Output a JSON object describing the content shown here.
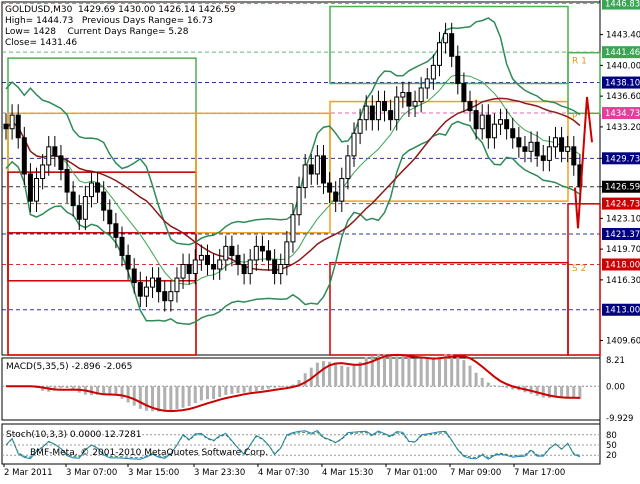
{
  "header": {
    "symbol_line": "GOLDUSD,M30  1429.69 1430.00 1426.14 1426.59",
    "high_line": "High= 1444.73   Previous Days Range= 16.73",
    "low_line": "Low= 1428    Current Days Range= 5.28",
    "close_line": "Close= 1431.46"
  },
  "panes": {
    "macd_label": "MACD(5,35,5) -2.896 -2.065",
    "stoch_label": "Stoch(10,3,3) 0.0000 12.7281"
  },
  "copyright": "BMF-Meta, © 2001-2010 MetaQuotes Software Corp.",
  "colors": {
    "background": "#ffffff",
    "candle": "#000000",
    "bands": "#2e8b57",
    "ma_slow": "#8b1a1a",
    "ma_fast": "#3aa655",
    "range_upper": "#4caf50",
    "range_orange": "#f0a020",
    "range_red": "#cc0000",
    "tag_red": "#cc0000",
    "tag_magenta": "#e0409c",
    "tag_green": "#3aa655",
    "tag_blue": "#000080",
    "tag_black": "#000000"
  },
  "chart_data": {
    "type": "line",
    "title": "GOLDUSD,M30",
    "ylim": [
      1408,
      1447
    ],
    "price_ticks": [
      "1443.40",
      "1440.00",
      "1436.60",
      "1433.20",
      "1429.73",
      "1426.59",
      "1423.10",
      "1419.70",
      "1416.30",
      "1409.60"
    ],
    "price_tags": [
      {
        "label": "1446.83",
        "value": 1446.83,
        "color": "#3aa655"
      },
      {
        "label": "1441.46",
        "value": 1441.46,
        "color": "#3aa655"
      },
      {
        "label": "1438.10",
        "value": 1438.1,
        "color": "#000080"
      },
      {
        "label": "1434.73",
        "value": 1434.73,
        "color": "#e0409c"
      },
      {
        "label": "1429.73",
        "value": 1429.73,
        "color": "#000080"
      },
      {
        "label": "1426.59",
        "value": 1426.59,
        "color": "#000000"
      },
      {
        "label": "1424.73",
        "value": 1424.73,
        "color": "#cc0000"
      },
      {
        "label": "1421.37",
        "value": 1421.37,
        "color": "#000080"
      },
      {
        "label": "1418.00",
        "value": 1418.0,
        "color": "#cc0000"
      },
      {
        "label": "1413.00",
        "value": 1413.0,
        "color": "#000080"
      }
    ],
    "pivot_labels": [
      {
        "label": "R 1",
        "value": 1440.2
      },
      {
        "label": "P",
        "value": 1434.0
      },
      {
        "label": "S 2",
        "value": 1417.3
      }
    ],
    "x_labels": [
      "2 Mar 2011",
      "3 Mar 07:00",
      "3 Mar 15:00",
      "3 Mar 23:30",
      "4 Mar 07:30",
      "4 Mar 15:30",
      "7 Mar 01:00",
      "7 Mar 09:00",
      "7 Mar 17:00"
    ],
    "close_series": [
      1433.0,
      1434.5,
      1432.0,
      1428.0,
      1425.0,
      1427.5,
      1429.0,
      1431.0,
      1430.0,
      1428.5,
      1426.0,
      1424.5,
      1423.0,
      1425.5,
      1427.0,
      1426.0,
      1424.0,
      1422.5,
      1421.0,
      1419.0,
      1417.5,
      1416.0,
      1414.5,
      1415.5,
      1416.5,
      1415.0,
      1414.0,
      1415.0,
      1416.5,
      1418.0,
      1417.0,
      1418.5,
      1419.0,
      1418.0,
      1417.5,
      1418.5,
      1420.0,
      1419.0,
      1418.0,
      1417.0,
      1418.5,
      1420.0,
      1419.5,
      1418.5,
      1417.0,
      1418.0,
      1420.5,
      1423.5,
      1426.5,
      1429.0,
      1428.0,
      1430.0,
      1427.0,
      1426.0,
      1425.0,
      1427.5,
      1430.0,
      1432.5,
      1434.0,
      1435.5,
      1434.0,
      1436.0,
      1435.0,
      1434.0,
      1436.5,
      1437.0,
      1435.5,
      1436.0,
      1437.5,
      1438.5,
      1440.0,
      1442.5,
      1443.5,
      1441.0,
      1438.0,
      1436.0,
      1435.0,
      1433.0,
      1434.5,
      1432.0,
      1433.5,
      1434.0,
      1433.0,
      1432.0,
      1431.0,
      1430.5,
      1431.5,
      1430.0,
      1429.5,
      1431.0,
      1432.0,
      1430.5,
      1431.0,
      1429.0,
      1426.59
    ],
    "macd_ticks": [
      "8.21",
      "0.00",
      "-9.929"
    ],
    "stoch_ticks": [
      "80",
      "50",
      "20"
    ],
    "grid": false,
    "legend": "none"
  }
}
